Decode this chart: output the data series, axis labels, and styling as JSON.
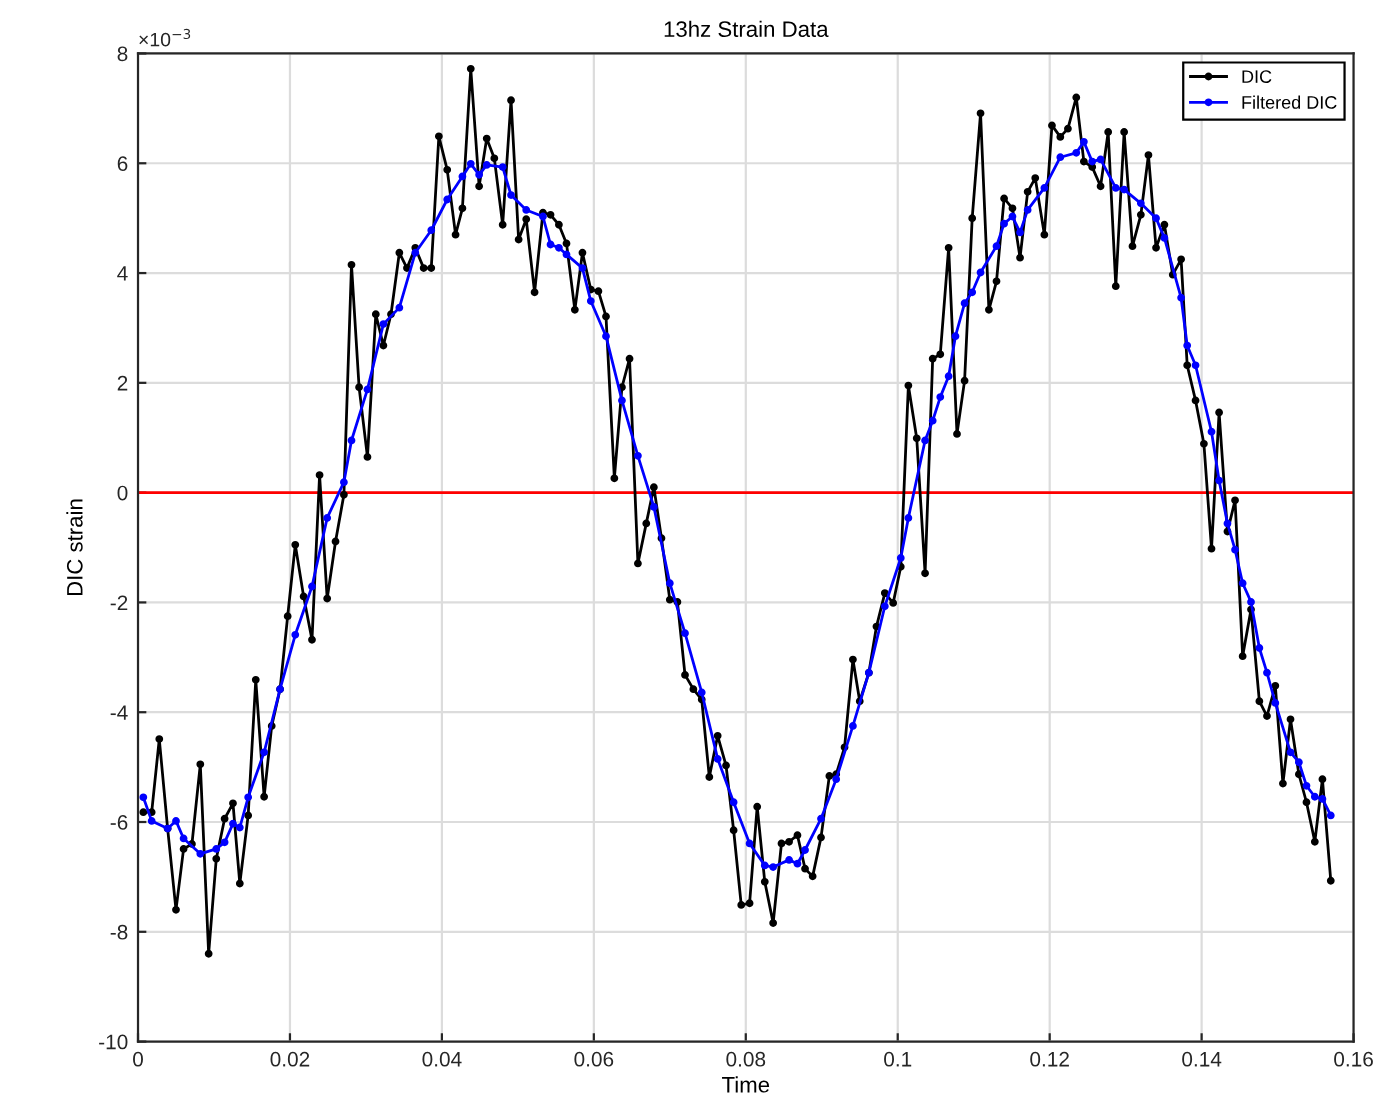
{
  "chart_data": {
    "type": "line",
    "title": "13hz Strain Data",
    "xlabel": "Time",
    "ylabel": "DIC strain",
    "annotations": [
      "×10$^{−3}$"
    ],
    "xlim": [
      0,
      0.16
    ],
    "xticks": [
      0,
      0.02,
      0.04,
      0.06,
      0.08,
      0.1,
      0.12,
      0.14,
      0.16
    ],
    "ylim": [
      -10,
      8
    ],
    "yticks": [
      -10,
      -8,
      -6,
      -4,
      -2,
      0,
      2,
      4,
      6,
      8
    ],
    "grid": true,
    "legend": "top right",
    "marker": "circle",
    "line_style": "solid",
    "ref_lines": [
      {
        "axis": "y",
        "value": 0,
        "color": "#ff0000"
      }
    ],
    "series": [
      {
        "name": "DIC",
        "color": "#000000",
        "x": [
          0.0007,
          0.0018,
          0.0028,
          0.0039,
          0.005,
          0.006,
          0.0071,
          0.0082,
          0.0093,
          0.0103,
          0.0114,
          0.0125,
          0.0134,
          0.0145,
          0.0155,
          0.0166,
          0.0176,
          0.0187,
          0.0197,
          0.0207,
          0.0218,
          0.0229,
          0.0239,
          0.0249,
          0.026,
          0.0271,
          0.0281,
          0.0291,
          0.0302,
          0.0313,
          0.0323,
          0.0333,
          0.0344,
          0.0354,
          0.0365,
          0.0376,
          0.0386,
          0.0396,
          0.0407,
          0.0418,
          0.0427,
          0.0438,
          0.0449,
          0.0459,
          0.0469,
          0.048,
          0.0491,
          0.0501,
          0.0511,
          0.0522,
          0.0533,
          0.0543,
          0.0554,
          0.0564,
          0.0575,
          0.0585,
          0.0596,
          0.0606,
          0.0616,
          0.0627,
          0.0637,
          0.0647,
          0.0658,
          0.0669,
          0.0679,
          0.0689,
          0.07,
          0.071,
          0.072,
          0.0731,
          0.0742,
          0.0752,
          0.0763,
          0.0774,
          0.0784,
          0.0794,
          0.0805,
          0.0815,
          0.0825,
          0.0836,
          0.0847,
          0.0857,
          0.0868,
          0.0878,
          0.0888,
          0.0899,
          0.091,
          0.0919,
          0.093,
          0.0941,
          0.095,
          0.0962,
          0.0972,
          0.0983,
          0.0994,
          0.1004,
          0.1014,
          0.1025,
          0.1036,
          0.1046,
          0.1056,
          0.1067,
          0.1078,
          0.1088,
          0.1098,
          0.1109,
          0.112,
          0.113,
          0.114,
          0.1151,
          0.1161,
          0.1171,
          0.1181,
          0.1193,
          0.1203,
          0.1214,
          0.1224,
          0.1235,
          0.1245,
          0.1256,
          0.1267,
          0.1277,
          0.1287,
          0.1298,
          0.1309,
          0.132,
          0.133,
          0.134,
          0.1351,
          0.1362,
          0.1373,
          0.1381,
          0.1392,
          0.1403,
          0.1413,
          0.1423,
          0.1434,
          0.1444,
          0.1454,
          0.1465,
          0.1476,
          0.1486,
          0.1497,
          0.1507,
          0.1517,
          0.1528,
          0.1538,
          0.1549,
          0.1559,
          0.157
        ],
        "values": [
          -5.82,
          -5.82,
          -4.49,
          -6.12,
          -7.6,
          -6.49,
          -6.4,
          -4.95,
          -8.4,
          -6.67,
          -5.94,
          -5.66,
          -7.12,
          -5.88,
          -3.41,
          -5.54,
          -4.25,
          -3.58,
          -2.25,
          -0.95,
          -1.89,
          -2.68,
          0.32,
          -1.93,
          -0.89,
          -0.04,
          4.15,
          1.92,
          0.65,
          3.25,
          2.68,
          3.25,
          4.37,
          4.09,
          4.46,
          4.09,
          4.09,
          6.49,
          5.88,
          4.7,
          5.18,
          7.72,
          5.58,
          6.45,
          6.09,
          4.88,
          7.15,
          4.61,
          4.98,
          3.65,
          5.1,
          5.06,
          4.88,
          4.54,
          3.33,
          4.37,
          3.7,
          3.67,
          3.21,
          0.26,
          1.92,
          2.44,
          -1.29,
          -0.56,
          0.1,
          -0.83,
          -1.95,
          -1.99,
          -3.32,
          -3.58,
          -3.77,
          -5.18,
          -4.43,
          -4.97,
          -6.15,
          -7.51,
          -7.48,
          -5.72,
          -7.09,
          -7.84,
          -6.39,
          -6.36,
          -6.24,
          -6.85,
          -6.99,
          -6.28,
          -5.16,
          -5.13,
          -4.64,
          -3.04,
          -3.8,
          -3.28,
          -2.44,
          -1.83,
          -2.01,
          -1.35,
          1.95,
          0.99,
          -1.47,
          2.44,
          2.52,
          4.46,
          1.07,
          2.04,
          5.0,
          6.91,
          3.33,
          3.85,
          5.36,
          5.18,
          4.28,
          5.48,
          5.73,
          4.7,
          6.69,
          6.48,
          6.63,
          7.2,
          6.03,
          5.93,
          5.58,
          6.57,
          3.76,
          6.57,
          4.49,
          5.06,
          6.15,
          4.46,
          4.88,
          3.97,
          4.25,
          2.32,
          1.68,
          0.89,
          -1.02,
          1.46,
          -0.71,
          -0.14,
          -2.98,
          -2.13,
          -3.8,
          -4.07,
          -3.52,
          -5.3,
          -4.13,
          -5.13,
          -5.64,
          -6.36,
          -5.22,
          -7.07
        ]
      },
      {
        "name": "Filtered DIC",
        "color": "#0000ff",
        "x": [
          0.0007,
          0.0018,
          0.0039,
          0.005,
          0.006,
          0.0082,
          0.0103,
          0.0114,
          0.0125,
          0.0134,
          0.0145,
          0.0166,
          0.0187,
          0.0207,
          0.0229,
          0.0249,
          0.0271,
          0.0281,
          0.0302,
          0.0323,
          0.0344,
          0.0365,
          0.0386,
          0.0407,
          0.0427,
          0.0438,
          0.0449,
          0.0459,
          0.048,
          0.0491,
          0.0511,
          0.0533,
          0.0543,
          0.0554,
          0.0564,
          0.0585,
          0.0596,
          0.0616,
          0.0637,
          0.0658,
          0.0679,
          0.07,
          0.072,
          0.0742,
          0.0763,
          0.0784,
          0.0805,
          0.0825,
          0.0836,
          0.0857,
          0.0868,
          0.0878,
          0.0899,
          0.0919,
          0.0941,
          0.0962,
          0.0983,
          0.1004,
          0.1014,
          0.1036,
          0.1046,
          0.1056,
          0.1067,
          0.1076,
          0.1088,
          0.1098,
          0.1109,
          0.113,
          0.114,
          0.1151,
          0.1161,
          0.1171,
          0.1193,
          0.1214,
          0.1235,
          0.1245,
          0.1256,
          0.1267,
          0.1287,
          0.1298,
          0.132,
          0.134,
          0.1351,
          0.1373,
          0.1381,
          0.1392,
          0.1413,
          0.1423,
          0.1434,
          0.1444,
          0.1454,
          0.1465,
          0.1476,
          0.1486,
          0.1497,
          0.1517,
          0.1528,
          0.1538,
          0.1549,
          0.1559,
          0.157
        ],
        "values": [
          -5.55,
          -5.98,
          -6.12,
          -5.98,
          -6.3,
          -6.58,
          -6.49,
          -6.37,
          -6.03,
          -6.1,
          -5.55,
          -4.73,
          -3.58,
          -2.59,
          -1.71,
          -0.46,
          0.19,
          0.95,
          1.88,
          3.07,
          3.37,
          4.37,
          4.78,
          5.34,
          5.76,
          5.99,
          5.79,
          5.97,
          5.93,
          5.42,
          5.15,
          5.03,
          4.52,
          4.46,
          4.34,
          4.09,
          3.49,
          2.85,
          1.68,
          0.67,
          -0.26,
          -1.65,
          -2.56,
          -3.64,
          -4.85,
          -5.64,
          -6.39,
          -6.79,
          -6.82,
          -6.69,
          -6.76,
          -6.51,
          -5.94,
          -5.22,
          -4.25,
          -3.28,
          -2.07,
          -1.19,
          -0.46,
          0.95,
          1.31,
          1.74,
          2.12,
          2.85,
          3.45,
          3.65,
          4.01,
          4.49,
          4.9,
          5.03,
          4.74,
          5.15,
          5.55,
          6.11,
          6.19,
          6.39,
          6.03,
          6.07,
          5.55,
          5.52,
          5.27,
          5.0,
          4.64,
          3.55,
          2.68,
          2.32,
          1.11,
          0.22,
          -0.56,
          -1.04,
          -1.65,
          -1.99,
          -2.83,
          -3.28,
          -3.83,
          -4.73,
          -4.91,
          -5.34,
          -5.54,
          -5.58,
          -5.88
        ]
      }
    ]
  }
}
